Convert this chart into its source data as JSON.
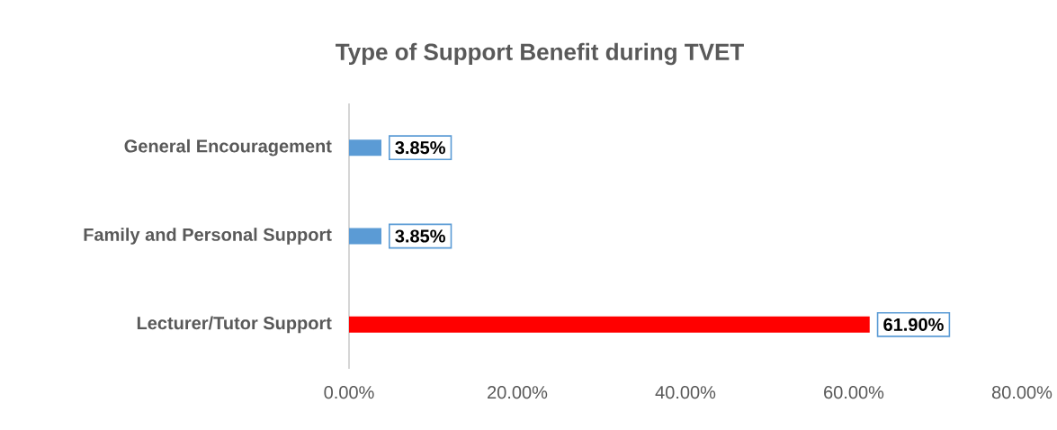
{
  "chart_data": {
    "type": "bar",
    "orientation": "horizontal",
    "title": "Type of Support Benefit during TVET",
    "categories": [
      "General Encouragement",
      "Family and Personal Support",
      "Lecturer/Tutor Support"
    ],
    "values": [
      3.85,
      3.85,
      61.9
    ],
    "colors": [
      "#5b9bd5",
      "#5b9bd5",
      "#ff0000"
    ],
    "value_labels": [
      "3.85%",
      "3.85%",
      "61.90%"
    ],
    "xlim": [
      0,
      80
    ],
    "xticks": [
      {
        "value": 0,
        "label": "0.00%"
      },
      {
        "value": 20,
        "label": "20.00%"
      },
      {
        "value": 40,
        "label": "40.00%"
      },
      {
        "value": 60,
        "label": "60.00%"
      },
      {
        "value": 80,
        "label": "80.00%"
      }
    ]
  }
}
